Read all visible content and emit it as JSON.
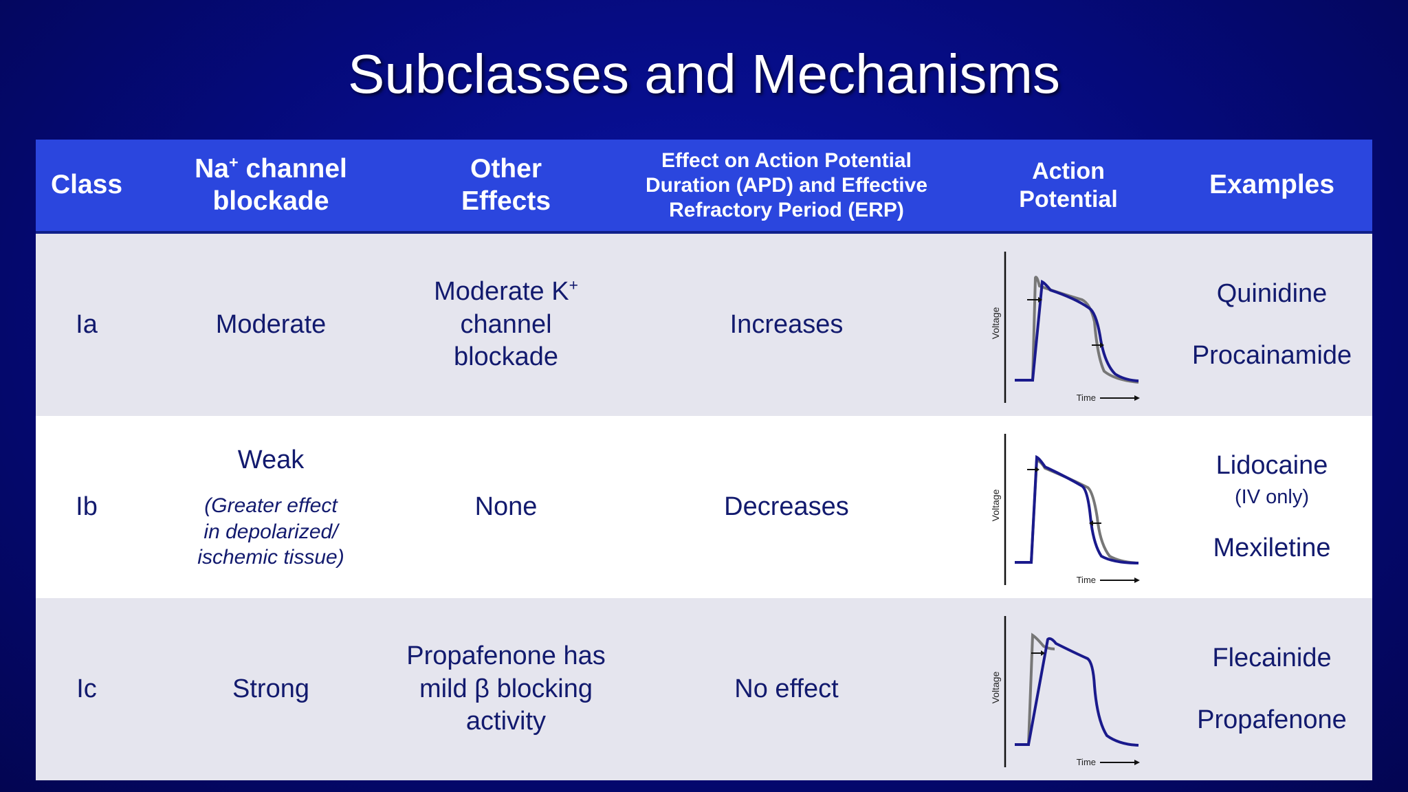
{
  "title": "Subclasses and Mechanisms",
  "headers": {
    "class": "Class",
    "na_channel_line1": "Na",
    "na_channel_sup": "+",
    "na_channel_line1b": " channel",
    "na_channel_line2": "blockade",
    "other_line1": "Other",
    "other_line2": "Effects",
    "effect_line1": "Effect on Action Potential",
    "effect_line2": "Duration (APD) and Effective",
    "effect_line3": "Refractory Period (ERP)",
    "ap_line1": "Action",
    "ap_line2": "Potential",
    "examples": "Examples"
  },
  "rows": [
    {
      "class": "Ia",
      "blockade": "Moderate",
      "other_line1": "Moderate K",
      "other_sup": "+",
      "other_line2": "channel",
      "other_line3": "blockade",
      "effect": "Increases",
      "examples": [
        "Quinidine",
        "Procainamide"
      ]
    },
    {
      "class": "Ib",
      "blockade": "Weak",
      "blockade_note_line1": "(Greater effect",
      "blockade_note_line2": "in depolarized/",
      "blockade_note_line3": "ischemic tissue)",
      "other": "None",
      "effect": "Decreases",
      "examples": [
        "Lidocaine",
        "Mexiletine"
      ],
      "example_note": "(IV only)"
    },
    {
      "class": "Ic",
      "blockade": "Strong",
      "other_line1": "Propafenone has",
      "other_line2": "mild β blocking",
      "other_line3": "activity",
      "effect": "No effect",
      "examples": [
        "Flecainide",
        "Propafenone"
      ]
    }
  ],
  "ap_axis": {
    "y_label": "Voltage",
    "x_label": "Time"
  },
  "colors": {
    "header_bg": "#2b46de",
    "drug_curve": "#1a1a8c",
    "baseline_curve": "#777777",
    "text": "#121a6e"
  }
}
